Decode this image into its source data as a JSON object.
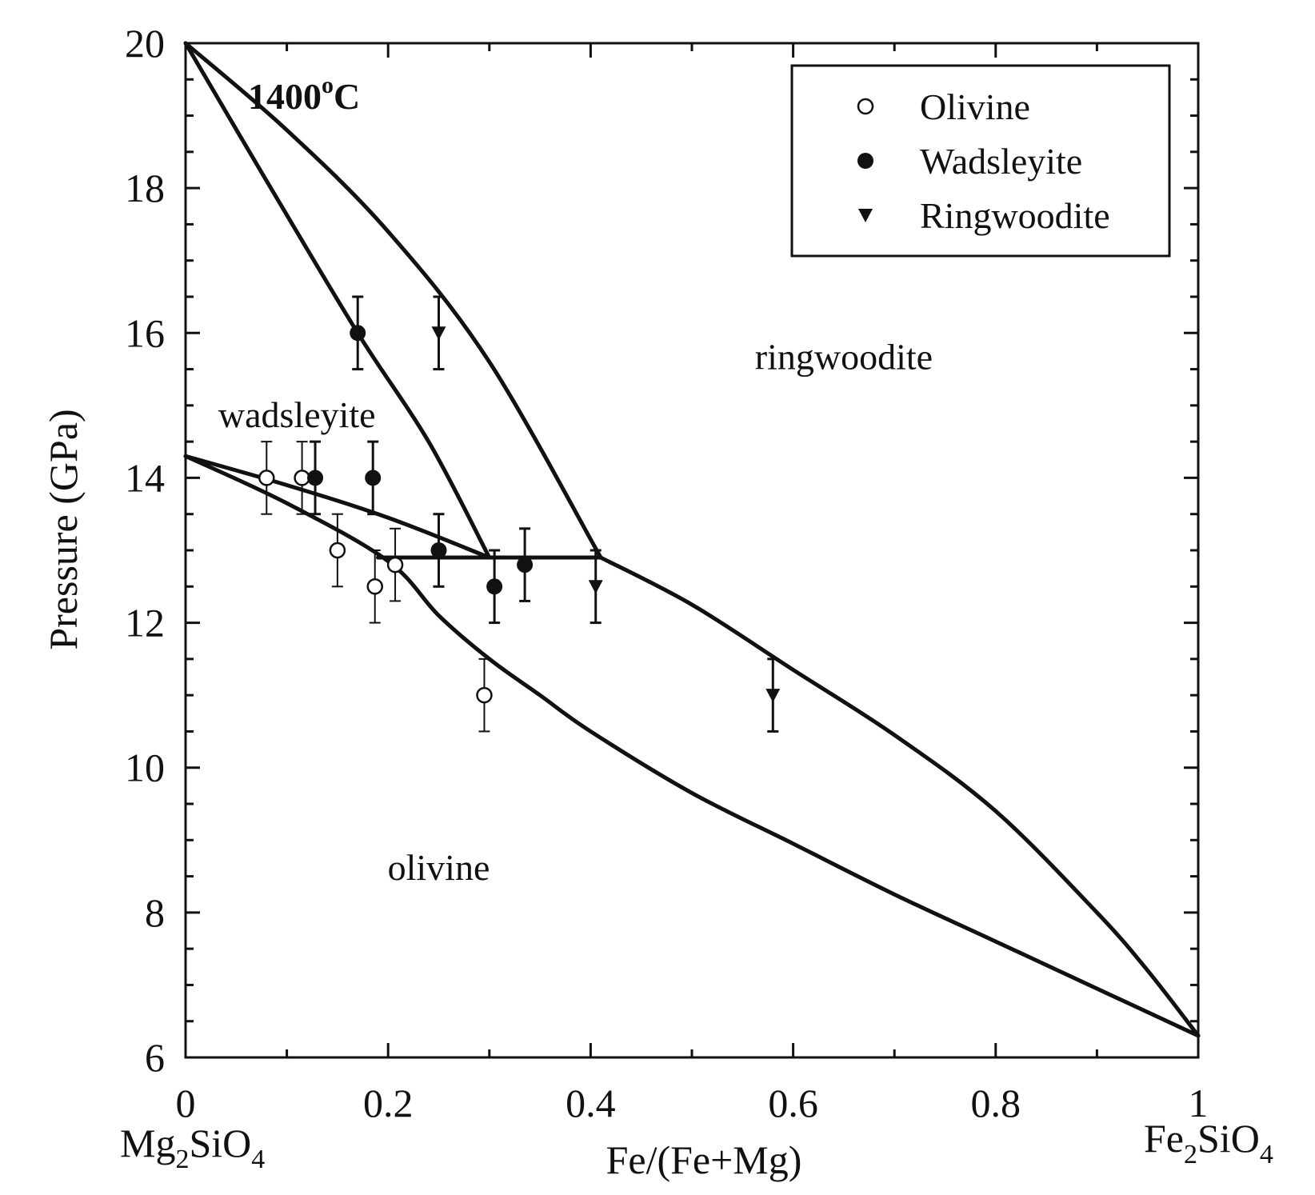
{
  "chart_data": {
    "type": "scatter",
    "title": "",
    "annotation": {
      "text": "1400",
      "sup": "o",
      "unit": "C"
    },
    "xlabel": "Fe/(Fe+Mg)",
    "ylabel": "Pressure (GPa)",
    "xlim": [
      0,
      1
    ],
    "ylim": [
      6,
      20
    ],
    "x_ticks": [
      {
        "value": 0,
        "label": "0"
      },
      {
        "value": 0.2,
        "label": "0.2"
      },
      {
        "value": 0.4,
        "label": "0.4"
      },
      {
        "value": 0.6,
        "label": "0.6"
      },
      {
        "value": 0.8,
        "label": "0.8"
      },
      {
        "value": 1,
        "label": "1"
      }
    ],
    "y_ticks": [
      {
        "value": 6,
        "label": "6"
      },
      {
        "value": 8,
        "label": "8"
      },
      {
        "value": 10,
        "label": "10"
      },
      {
        "value": 12,
        "label": "12"
      },
      {
        "value": 14,
        "label": "14"
      },
      {
        "value": 16,
        "label": "16"
      },
      {
        "value": 18,
        "label": "18"
      },
      {
        "value": 20,
        "label": "20"
      }
    ],
    "endmembers": {
      "left": {
        "base": "Mg",
        "sub1": "2",
        "mid": "SiO",
        "sub2": "4"
      },
      "right": {
        "base": "Fe",
        "sub1": "2",
        "mid": "SiO",
        "sub2": "4"
      }
    },
    "grid": false,
    "legend_position": "top-right",
    "legend": [
      {
        "label": "Olivine",
        "marker": "open-circle"
      },
      {
        "label": "Wadsleyite",
        "marker": "filled-circle"
      },
      {
        "label": "Ringwoodite",
        "marker": "filled-triangle-down"
      }
    ],
    "region_labels": [
      {
        "text": "ringwoodite",
        "x": 0.65,
        "y": 15.5
      },
      {
        "text": "wadsleyite",
        "x": 0.11,
        "y": 14.7
      },
      {
        "text": "olivine",
        "x": 0.25,
        "y": 8.45
      }
    ],
    "series": [
      {
        "name": "Olivine",
        "marker": "open-circle",
        "points": [
          {
            "x": 0.08,
            "y": 14.0,
            "err": 0.5
          },
          {
            "x": 0.115,
            "y": 14.0,
            "err": 0.5
          },
          {
            "x": 0.15,
            "y": 13.0,
            "err": 0.5
          },
          {
            "x": 0.187,
            "y": 12.5,
            "err": 0.5
          },
          {
            "x": 0.207,
            "y": 12.8,
            "err": 0.5
          },
          {
            "x": 0.295,
            "y": 11.0,
            "err": 0.5
          }
        ]
      },
      {
        "name": "Wadsleyite",
        "marker": "filled-circle",
        "points": [
          {
            "x": 0.128,
            "y": 14.0,
            "err": 0.5
          },
          {
            "x": 0.17,
            "y": 16.0,
            "err": 0.5
          },
          {
            "x": 0.185,
            "y": 14.0,
            "err": 0.5
          },
          {
            "x": 0.25,
            "y": 13.0,
            "err": 0.5
          },
          {
            "x": 0.305,
            "y": 12.5,
            "err": 0.5
          },
          {
            "x": 0.335,
            "y": 12.8,
            "err": 0.5
          }
        ]
      },
      {
        "name": "Ringwoodite",
        "marker": "filled-triangle-down",
        "points": [
          {
            "x": 0.25,
            "y": 16.0,
            "err": 0.5
          },
          {
            "x": 0.405,
            "y": 12.5,
            "err": 0.5
          },
          {
            "x": 0.58,
            "y": 11.0,
            "err": 0.5
          }
        ]
      }
    ],
    "boundaries": [
      {
        "points": [
          [
            0,
            20
          ],
          [
            0.08,
            18.1
          ],
          [
            0.17,
            16.0
          ],
          [
            0.24,
            14.5
          ],
          [
            0.3,
            12.9
          ]
        ]
      },
      {
        "points": [
          [
            0,
            20
          ],
          [
            0.1,
            18.8
          ],
          [
            0.2,
            17.4
          ],
          [
            0.3,
            15.6
          ],
          [
            0.41,
            12.9
          ]
        ]
      },
      {
        "points": [
          [
            0,
            14.3
          ],
          [
            0.1,
            13.9
          ],
          [
            0.2,
            13.45
          ],
          [
            0.3,
            12.9
          ]
        ]
      },
      {
        "points": [
          [
            0,
            14.3
          ],
          [
            0.1,
            13.65
          ],
          [
            0.2,
            12.85
          ],
          [
            0.25,
            12.1
          ],
          [
            0.3,
            11.5
          ],
          [
            0.35,
            11.0
          ],
          [
            0.4,
            10.5
          ],
          [
            0.5,
            9.65
          ],
          [
            0.6,
            8.95
          ],
          [
            0.7,
            8.25
          ],
          [
            0.8,
            7.6
          ],
          [
            0.9,
            6.95
          ],
          [
            1.0,
            6.3
          ]
        ]
      },
      {
        "points": [
          [
            0.41,
            12.9
          ],
          [
            0.5,
            12.25
          ],
          [
            0.6,
            11.35
          ],
          [
            0.7,
            10.45
          ],
          [
            0.8,
            9.4
          ],
          [
            0.9,
            8.0
          ],
          [
            0.95,
            7.2
          ],
          [
            1.0,
            6.3
          ]
        ]
      },
      {
        "points": [
          [
            0.19,
            12.9
          ],
          [
            0.41,
            12.9
          ]
        ]
      }
    ]
  }
}
